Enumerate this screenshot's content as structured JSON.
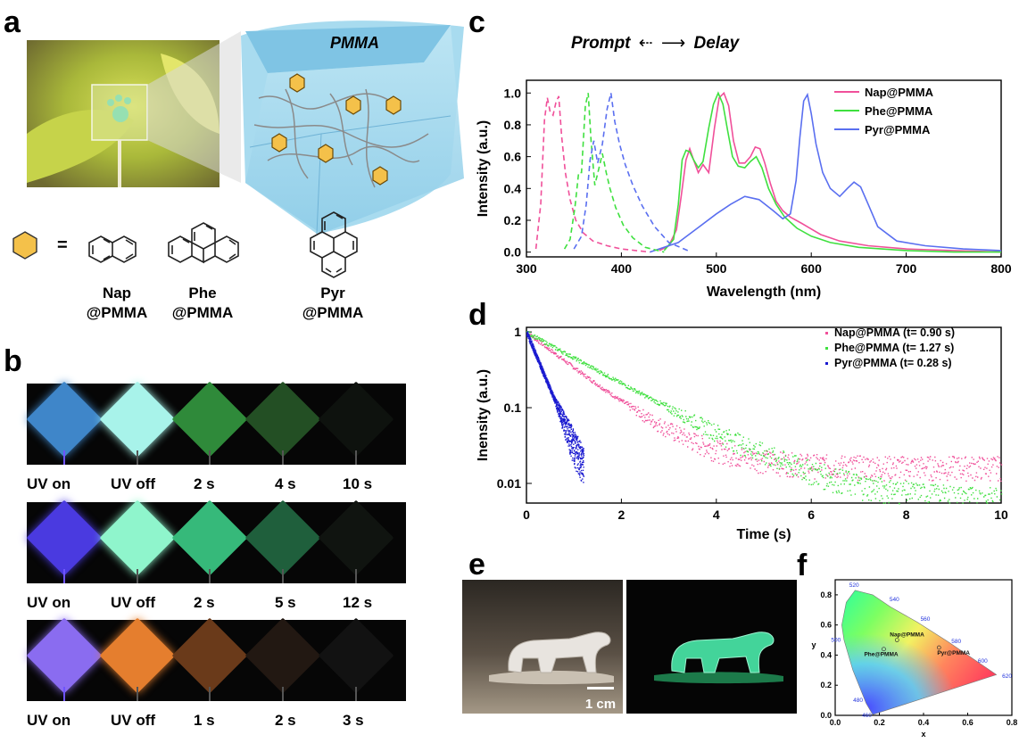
{
  "panels": {
    "a": "a",
    "b": "b",
    "c": "c",
    "d": "d",
    "e": "e",
    "f": "f"
  },
  "panel_a": {
    "cube_label": "PMMA",
    "equals": "=",
    "molecules": [
      {
        "line1": "Nap",
        "line2": "@PMMA"
      },
      {
        "line1": "Phe",
        "line2": "@PMMA"
      },
      {
        "line1": "Pyr",
        "line2": "@PMMA"
      }
    ]
  },
  "panel_b": {
    "rows": [
      {
        "labels": [
          "UV on",
          "UV off",
          "2 s",
          "4 s",
          "10 s"
        ],
        "colors": [
          "#3f86c9",
          "#a8f3ea",
          "#2f8a3a",
          "#234f24",
          "#0e120e"
        ]
      },
      {
        "labels": [
          "UV on",
          "UV off",
          "2 s",
          "5 s",
          "12 s"
        ],
        "colors": [
          "#4a3ae0",
          "#8ff5cc",
          "#36b97a",
          "#1f5f3c",
          "#101410"
        ]
      },
      {
        "labels": [
          "UV on",
          "UV off",
          "1 s",
          "2 s",
          "3 s"
        ],
        "colors": [
          "#8a6cf0",
          "#e57e2e",
          "#6a3a1a",
          "#221812",
          "#121212"
        ]
      }
    ]
  },
  "panel_c": {
    "header_left": "Prompt",
    "header_right": "Delay"
  },
  "panel_e": {
    "scale_label": "1 cm"
  },
  "chart_data": [
    {
      "id": "c",
      "type": "line",
      "xlabel": "Wavelength (nm)",
      "ylabel": "Intensity (a.u.)",
      "xlim": [
        300,
        800
      ],
      "ylim": [
        -0.03,
        1.08
      ],
      "xticks": [
        300,
        400,
        500,
        600,
        700,
        800
      ],
      "yticks": [
        0.0,
        0.2,
        0.4,
        0.6,
        0.8,
        1.0
      ],
      "legend_position": "top-right",
      "series": [
        {
          "name": "Nap@PMMA",
          "color": "#f0509a",
          "style": "solid",
          "x": [
            440,
            450,
            458,
            463,
            468,
            472,
            476,
            481,
            486,
            492,
            498,
            503,
            508,
            513,
            518,
            524,
            530,
            536,
            541,
            546,
            551,
            557,
            563,
            570,
            578,
            590,
            610,
            630,
            660,
            700,
            750,
            800
          ],
          "y": [
            0.01,
            0.04,
            0.14,
            0.35,
            0.58,
            0.65,
            0.58,
            0.5,
            0.55,
            0.5,
            0.78,
            0.97,
            1.0,
            0.92,
            0.7,
            0.56,
            0.56,
            0.6,
            0.66,
            0.65,
            0.56,
            0.43,
            0.32,
            0.26,
            0.22,
            0.18,
            0.11,
            0.07,
            0.04,
            0.02,
            0.01,
            0.0
          ]
        },
        {
          "name": "Phe@PMMA",
          "color": "#3fe03f",
          "style": "solid",
          "x": [
            445,
            455,
            460,
            464,
            468,
            472,
            476,
            481,
            486,
            492,
            497,
            502,
            507,
            512,
            517,
            523,
            530,
            536,
            542,
            548,
            555,
            563,
            572,
            585,
            600,
            620,
            650,
            700,
            750,
            800
          ],
          "y": [
            0.01,
            0.08,
            0.3,
            0.58,
            0.64,
            0.63,
            0.58,
            0.53,
            0.57,
            0.78,
            0.93,
            1.0,
            0.93,
            0.76,
            0.6,
            0.54,
            0.53,
            0.57,
            0.6,
            0.53,
            0.4,
            0.3,
            0.22,
            0.15,
            0.1,
            0.06,
            0.03,
            0.01,
            0.0,
            0.0
          ]
        },
        {
          "name": "Pyr@PMMA",
          "color": "#5a6ff0",
          "style": "solid",
          "x": [
            430,
            460,
            480,
            500,
            515,
            530,
            545,
            560,
            570,
            578,
            584,
            588,
            592,
            596,
            600,
            605,
            612,
            620,
            630,
            638,
            645,
            652,
            660,
            670,
            690,
            720,
            760,
            800
          ],
          "y": [
            0.0,
            0.06,
            0.15,
            0.24,
            0.3,
            0.35,
            0.33,
            0.26,
            0.21,
            0.24,
            0.45,
            0.72,
            0.95,
            0.99,
            0.87,
            0.68,
            0.5,
            0.4,
            0.35,
            0.4,
            0.44,
            0.41,
            0.3,
            0.16,
            0.07,
            0.04,
            0.02,
            0.01
          ]
        },
        {
          "name": "Nap@PMMA prompt",
          "color": "#f0509a",
          "style": "dashed",
          "x": [
            310,
            315,
            319,
            322,
            325,
            328,
            331,
            334,
            337,
            341,
            346,
            352,
            360,
            370,
            385,
            400,
            430
          ],
          "y": [
            0.02,
            0.3,
            0.83,
            0.97,
            0.88,
            0.86,
            0.94,
            0.98,
            0.73,
            0.5,
            0.33,
            0.2,
            0.12,
            0.07,
            0.04,
            0.02,
            0.0
          ]
        },
        {
          "name": "Phe@PMMA prompt",
          "color": "#3fe03f",
          "style": "dashed",
          "x": [
            340,
            346,
            351,
            355,
            358,
            362,
            365,
            368,
            372,
            376,
            380,
            384,
            388,
            394,
            402,
            412,
            425,
            445
          ],
          "y": [
            0.02,
            0.08,
            0.28,
            0.5,
            0.5,
            0.92,
            1.0,
            0.7,
            0.42,
            0.52,
            0.62,
            0.5,
            0.4,
            0.28,
            0.17,
            0.09,
            0.03,
            0.0
          ]
        },
        {
          "name": "Pyr@PMMA prompt",
          "color": "#5a6ff0",
          "style": "dashed",
          "x": [
            350,
            358,
            363,
            367,
            371,
            375,
            380,
            385,
            389,
            393,
            398,
            404,
            412,
            422,
            435,
            450,
            470
          ],
          "y": [
            0.02,
            0.1,
            0.3,
            0.58,
            0.7,
            0.56,
            0.68,
            0.9,
            1.0,
            0.82,
            0.68,
            0.55,
            0.42,
            0.29,
            0.16,
            0.06,
            0.01
          ]
        }
      ]
    },
    {
      "id": "d",
      "type": "scatter",
      "xlabel": "Time (s)",
      "ylabel": "Inensity (a.u.)",
      "xlim": [
        0,
        10
      ],
      "ylim": [
        0.0055,
        1.15
      ],
      "yscale": "log",
      "xticks": [
        0,
        2,
        4,
        6,
        8,
        10
      ],
      "yticks": [
        1,
        0.1,
        0.01
      ],
      "legend_position": "top-right",
      "series": [
        {
          "name": "Nap@PMMA (t= 0.90 s)",
          "color": "#f0509a",
          "tau": 0.9,
          "floor": 0.017
        },
        {
          "name": "Phe@PMMA (t= 1.27 s)",
          "color": "#3fe03f",
          "tau": 1.27,
          "floor": 0.006
        },
        {
          "name": "Pyr@PMMA (t= 0.28 s)",
          "color": "#1a1ad0",
          "tau": 0.28,
          "floor": 0.006
        }
      ]
    },
    {
      "id": "f",
      "type": "scatter",
      "xlabel": "x",
      "ylabel": "y",
      "xlim": [
        0.0,
        0.8
      ],
      "ylim": [
        0.0,
        0.9
      ],
      "xticks": [
        0.0,
        0.2,
        0.4,
        0.6,
        0.8
      ],
      "yticks": [
        0.0,
        0.2,
        0.4,
        0.6,
        0.8
      ],
      "wavelength_labels": [
        "460",
        "480",
        "500",
        "520",
        "540",
        "560",
        "580",
        "600",
        "620"
      ],
      "points": [
        {
          "name": "Nap@PMMA",
          "x": 0.28,
          "y": 0.5
        },
        {
          "name": "Phe@PMMA",
          "x": 0.22,
          "y": 0.44
        },
        {
          "name": "Pyr@PMMA",
          "x": 0.47,
          "y": 0.45
        }
      ]
    }
  ]
}
